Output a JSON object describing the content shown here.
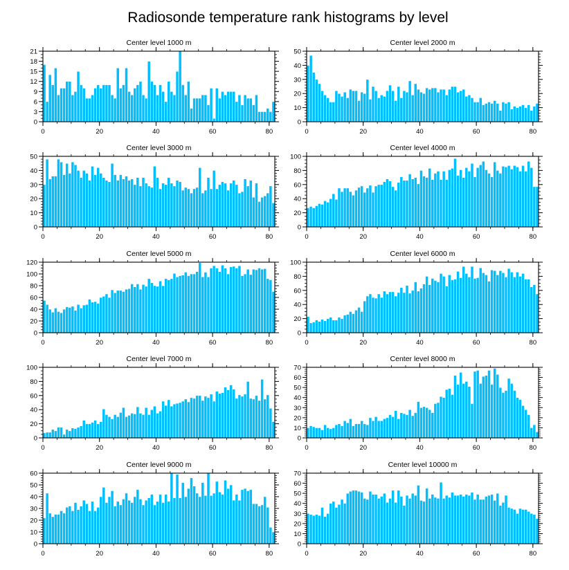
{
  "figure": {
    "title": "Radiosonde temperature rank histograms by level",
    "bar_color": "#00bfff",
    "bar_edge_color": "#ffffff"
  },
  "chart_data": [
    {
      "type": "bar",
      "title": "Center level 1000 m",
      "xlim": [
        0,
        82
      ],
      "ylim": [
        0,
        21
      ],
      "xticks": [
        0,
        20,
        40,
        60,
        80
      ],
      "yticks": [
        0,
        3,
        6,
        9,
        12,
        15,
        18,
        21
      ],
      "x_start": 0,
      "values": [
        17,
        6,
        14,
        11,
        16,
        8,
        10,
        10,
        12,
        12,
        8,
        9,
        15,
        11,
        10,
        7,
        7,
        8,
        10,
        11,
        10,
        11,
        11,
        11,
        8,
        7,
        16,
        10,
        11,
        16,
        9,
        8,
        10,
        11,
        12,
        8,
        7,
        18,
        12,
        11,
        8,
        11,
        9,
        6,
        12,
        9,
        8,
        15,
        21,
        11,
        8,
        12,
        4,
        7,
        7,
        7,
        8,
        8,
        5,
        10,
        1,
        10,
        7,
        9,
        8,
        9,
        9,
        9,
        6,
        8,
        5,
        8,
        7,
        7,
        5,
        8,
        3,
        3,
        3,
        4,
        3,
        6
      ]
    },
    {
      "type": "bar",
      "title": "Center level 2000 m",
      "xlim": [
        0,
        82
      ],
      "ylim": [
        0,
        50
      ],
      "xticks": [
        0,
        20,
        40,
        60,
        80
      ],
      "yticks": [
        0,
        10,
        20,
        30,
        40,
        50
      ],
      "x_start": 0,
      "values": [
        40,
        47,
        35,
        30,
        27,
        22,
        19,
        17,
        14,
        14,
        22,
        20,
        18,
        21,
        17,
        23,
        22,
        22,
        15,
        21,
        20,
        30,
        16,
        25,
        22,
        17,
        19,
        18,
        22,
        26,
        22,
        15,
        25,
        17,
        22,
        21,
        29,
        19,
        27,
        23,
        21,
        20,
        24,
        23,
        24,
        24,
        21,
        23,
        23,
        19,
        23,
        25,
        25,
        21,
        22,
        23,
        18,
        19,
        17,
        14,
        14,
        17,
        12,
        13,
        14,
        13,
        15,
        13,
        8,
        14,
        13,
        14,
        9,
        11,
        10,
        11,
        12,
        10,
        12,
        8,
        11,
        13
      ]
    },
    {
      "type": "bar",
      "title": "Center level 3000 m",
      "xlim": [
        0,
        82
      ],
      "ylim": [
        0,
        50
      ],
      "xticks": [
        0,
        20,
        40,
        60,
        80
      ],
      "yticks": [
        0,
        10,
        20,
        30,
        40,
        50
      ],
      "x_start": 0,
      "values": [
        30,
        48,
        34,
        36,
        36,
        48,
        46,
        37,
        45,
        38,
        46,
        44,
        40,
        35,
        40,
        38,
        33,
        43,
        37,
        42,
        38,
        35,
        33,
        32,
        45,
        37,
        33,
        37,
        34,
        36,
        33,
        34,
        30,
        35,
        29,
        35,
        31,
        29,
        28,
        43,
        35,
        27,
        31,
        30,
        35,
        31,
        29,
        33,
        32,
        26,
        28,
        27,
        24,
        27,
        28,
        42,
        24,
        26,
        35,
        27,
        40,
        27,
        30,
        32,
        31,
        26,
        31,
        33,
        30,
        24,
        25,
        34,
        29,
        33,
        21,
        31,
        18,
        21,
        22,
        24,
        29,
        17
      ]
    },
    {
      "type": "bar",
      "title": "Center level 4000 m",
      "xlim": [
        0,
        82
      ],
      "ylim": [
        0,
        100
      ],
      "xticks": [
        0,
        20,
        40,
        60,
        80
      ],
      "yticks": [
        0,
        20,
        40,
        60,
        80,
        100
      ],
      "x_start": 0,
      "values": [
        27,
        29,
        27,
        30,
        33,
        32,
        37,
        35,
        40,
        47,
        39,
        55,
        50,
        55,
        55,
        50,
        45,
        52,
        56,
        58,
        49,
        55,
        59,
        49,
        58,
        60,
        60,
        64,
        68,
        65,
        57,
        52,
        63,
        71,
        66,
        66,
        75,
        68,
        70,
        61,
        80,
        72,
        70,
        83,
        67,
        76,
        79,
        67,
        79,
        67,
        81,
        83,
        97,
        73,
        81,
        70,
        84,
        79,
        90,
        71,
        84,
        88,
        93,
        81,
        76,
        71,
        92,
        80,
        76,
        86,
        85,
        87,
        82,
        87,
        85,
        79,
        87,
        79,
        93,
        84,
        57,
        57
      ]
    },
    {
      "type": "bar",
      "title": "Center level 5000 m",
      "xlim": [
        0,
        82
      ],
      "ylim": [
        0,
        120
      ],
      "xticks": [
        0,
        20,
        40,
        60,
        80
      ],
      "yticks": [
        0,
        20,
        40,
        60,
        80,
        100,
        120
      ],
      "x_start": 0,
      "values": [
        55,
        48,
        40,
        35,
        42,
        36,
        34,
        40,
        44,
        43,
        45,
        38,
        48,
        42,
        47,
        48,
        57,
        52,
        53,
        50,
        60,
        62,
        66,
        60,
        73,
        68,
        72,
        72,
        70,
        74,
        75,
        83,
        78,
        83,
        74,
        82,
        79,
        92,
        85,
        80,
        79,
        88,
        80,
        92,
        90,
        92,
        101,
        95,
        97,
        98,
        103,
        97,
        100,
        100,
        104,
        119,
        95,
        103,
        95,
        110,
        114,
        110,
        104,
        115,
        110,
        100,
        112,
        113,
        110,
        114,
        97,
        100,
        108,
        99,
        108,
        107,
        110,
        108,
        109,
        92,
        90,
        70
      ]
    },
    {
      "type": "bar",
      "title": "Center level 6000 m",
      "xlim": [
        0,
        82
      ],
      "ylim": [
        0,
        100
      ],
      "xticks": [
        0,
        20,
        40,
        60,
        80
      ],
      "yticks": [
        0,
        20,
        40,
        60,
        80,
        100
      ],
      "x_start": 0,
      "values": [
        23,
        14,
        15,
        18,
        16,
        19,
        17,
        20,
        22,
        18,
        18,
        22,
        20,
        25,
        26,
        30,
        27,
        32,
        36,
        30,
        45,
        52,
        55,
        50,
        49,
        55,
        50,
        59,
        55,
        58,
        58,
        52,
        57,
        64,
        57,
        67,
        56,
        60,
        72,
        59,
        63,
        69,
        80,
        68,
        77,
        74,
        72,
        84,
        80,
        66,
        82,
        75,
        76,
        87,
        78,
        94,
        84,
        79,
        94,
        77,
        78,
        92,
        85,
        82,
        73,
        89,
        88,
        82,
        88,
        85,
        79,
        91,
        86,
        79,
        86,
        80,
        84,
        76,
        76,
        65,
        68,
        55,
        51,
        47
      ]
    },
    {
      "type": "bar",
      "title": "Center level 7000 m",
      "xlim": [
        0,
        82
      ],
      "ylim": [
        0,
        100
      ],
      "xticks": [
        0,
        20,
        40,
        60,
        80
      ],
      "yticks": [
        0,
        20,
        40,
        60,
        80,
        100
      ],
      "x_start": 0,
      "values": [
        7,
        8,
        8,
        12,
        10,
        15,
        15,
        5,
        12,
        10,
        14,
        13,
        15,
        17,
        25,
        20,
        20,
        22,
        25,
        20,
        23,
        41,
        33,
        30,
        27,
        33,
        30,
        36,
        43,
        30,
        32,
        35,
        34,
        44,
        35,
        33,
        43,
        33,
        40,
        45,
        35,
        38,
        52,
        46,
        54,
        45,
        48,
        49,
        50,
        52,
        55,
        51,
        57,
        56,
        60,
        60,
        53,
        59,
        57,
        62,
        52,
        66,
        63,
        64,
        72,
        68,
        75,
        69,
        56,
        61,
        59,
        62,
        80,
        56,
        55,
        60,
        53,
        83,
        55,
        61,
        42,
        23,
        24
      ]
    },
    {
      "type": "bar",
      "title": "Center level 8000 m",
      "xlim": [
        0,
        82
      ],
      "ylim": [
        0,
        70
      ],
      "xticks": [
        0,
        20,
        40,
        60,
        80
      ],
      "yticks": [
        0,
        10,
        20,
        30,
        40,
        50,
        60,
        70
      ],
      "x_start": 0,
      "values": [
        10,
        12,
        11,
        10,
        10,
        8,
        13,
        10,
        9,
        10,
        13,
        14,
        12,
        17,
        15,
        19,
        12,
        14,
        14,
        17,
        14,
        13,
        20,
        17,
        21,
        17,
        17,
        19,
        20,
        23,
        21,
        27,
        19,
        25,
        24,
        23,
        28,
        22,
        25,
        36,
        30,
        31,
        30,
        28,
        25,
        34,
        35,
        41,
        40,
        48,
        49,
        43,
        62,
        53,
        65,
        54,
        56,
        51,
        34,
        66,
        67,
        54,
        61,
        62,
        67,
        53,
        69,
        63,
        50,
        45,
        47,
        59,
        54,
        47,
        40,
        38,
        32,
        28,
        23,
        10,
        13,
        6
      ]
    },
    {
      "type": "bar",
      "title": "Center level 9000 m",
      "xlim": [
        0,
        82
      ],
      "ylim": [
        0,
        60
      ],
      "xticks": [
        0,
        20,
        40,
        60,
        80
      ],
      "yticks": [
        0,
        10,
        20,
        30,
        40,
        50,
        60
      ],
      "x_start": 0,
      "values": [
        22,
        43,
        26,
        23,
        25,
        25,
        28,
        26,
        31,
        32,
        28,
        35,
        29,
        32,
        37,
        34,
        28,
        36,
        28,
        31,
        40,
        48,
        35,
        40,
        45,
        32,
        36,
        33,
        38,
        43,
        37,
        35,
        40,
        46,
        38,
        33,
        37,
        39,
        42,
        33,
        36,
        42,
        35,
        42,
        36,
        60,
        39,
        59,
        39,
        52,
        40,
        47,
        56,
        49,
        43,
        40,
        52,
        41,
        60,
        41,
        43,
        53,
        44,
        42,
        54,
        47,
        50,
        37,
        42,
        37,
        46,
        47,
        45,
        46,
        34,
        34,
        32,
        33,
        40,
        31,
        14,
        10
      ]
    },
    {
      "type": "bar",
      "title": "Center level 10000 m",
      "xlim": [
        0,
        82
      ],
      "ylim": [
        0,
        70
      ],
      "xticks": [
        0,
        20,
        40,
        60,
        80
      ],
      "yticks": [
        0,
        10,
        20,
        30,
        40,
        50,
        60,
        70
      ],
      "x_start": 0,
      "values": [
        30,
        29,
        28,
        29,
        28,
        36,
        27,
        30,
        40,
        42,
        36,
        39,
        44,
        40,
        50,
        52,
        53,
        53,
        52,
        51,
        45,
        44,
        52,
        49,
        49,
        45,
        47,
        50,
        41,
        45,
        53,
        41,
        53,
        47,
        38,
        48,
        45,
        50,
        48,
        58,
        43,
        42,
        55,
        45,
        49,
        46,
        45,
        61,
        45,
        48,
        46,
        51,
        48,
        48,
        49,
        47,
        49,
        48,
        51,
        44,
        49,
        44,
        44,
        47,
        48,
        49,
        43,
        50,
        38,
        41,
        48,
        36,
        35,
        34,
        30,
        35,
        34,
        34,
        32,
        30,
        29,
        25,
        23,
        25
      ]
    }
  ]
}
